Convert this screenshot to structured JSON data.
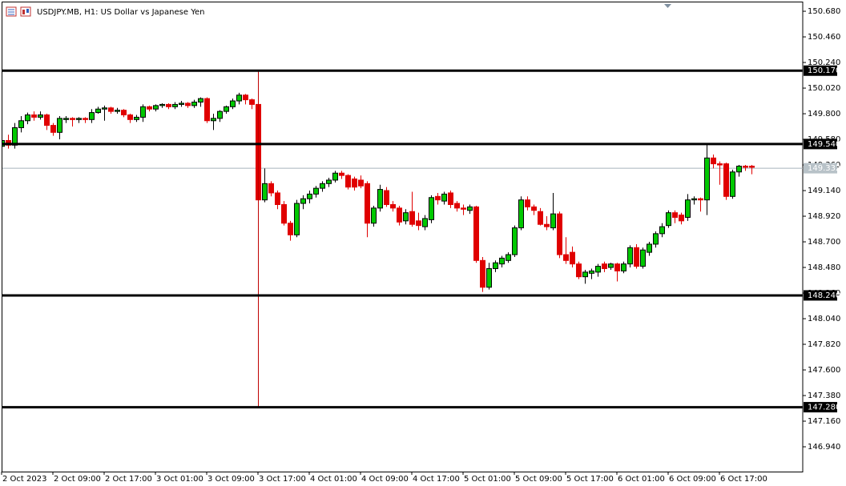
{
  "chart_data": {
    "type": "candlestick",
    "title": "USDJPY.MB, H1:  US Dollar vs Japanese Yen",
    "up_color": "#00c800",
    "down_color": "#e00000",
    "ohlc": [
      [
        149.52,
        149.6,
        149.5,
        149.57
      ],
      [
        149.57,
        149.62,
        149.5,
        149.53
      ],
      [
        149.53,
        149.72,
        149.5,
        149.68
      ],
      [
        149.68,
        149.78,
        149.64,
        149.74
      ],
      [
        149.74,
        149.81,
        149.71,
        149.79
      ],
      [
        149.79,
        149.82,
        149.74,
        149.77
      ],
      [
        149.77,
        149.82,
        149.75,
        149.79
      ],
      [
        149.79,
        149.8,
        149.66,
        149.7
      ],
      [
        149.7,
        149.72,
        149.61,
        149.64
      ],
      [
        149.64,
        149.78,
        149.58,
        149.76
      ],
      [
        149.75,
        149.78,
        149.72,
        149.76
      ],
      [
        149.76,
        149.77,
        149.69,
        149.75
      ],
      [
        149.75,
        149.77,
        149.72,
        149.76
      ],
      [
        149.76,
        149.77,
        149.72,
        149.75
      ],
      [
        149.75,
        149.84,
        149.72,
        149.81
      ],
      [
        149.81,
        149.86,
        149.8,
        149.84
      ],
      [
        149.84,
        149.87,
        149.74,
        149.85
      ],
      [
        149.85,
        149.86,
        149.8,
        149.82
      ],
      [
        149.82,
        149.85,
        149.8,
        149.83
      ],
      [
        149.83,
        149.84,
        149.77,
        149.79
      ],
      [
        149.79,
        149.8,
        149.72,
        149.75
      ],
      [
        149.75,
        149.79,
        149.73,
        149.77
      ],
      [
        149.77,
        149.88,
        149.73,
        149.86
      ],
      [
        149.86,
        149.87,
        149.82,
        149.84
      ],
      [
        149.84,
        149.88,
        149.82,
        149.87
      ],
      [
        149.87,
        149.89,
        149.85,
        149.88
      ],
      [
        149.88,
        149.89,
        149.84,
        149.86
      ],
      [
        149.86,
        149.9,
        149.84,
        149.88
      ],
      [
        149.88,
        149.91,
        149.86,
        149.89
      ],
      [
        149.89,
        149.9,
        149.85,
        149.87
      ],
      [
        149.87,
        149.92,
        149.85,
        149.9
      ],
      [
        149.9,
        149.94,
        149.86,
        149.93
      ],
      [
        149.93,
        149.94,
        149.72,
        149.74
      ],
      [
        149.74,
        149.8,
        149.66,
        149.76
      ],
      [
        149.76,
        149.83,
        149.73,
        149.82
      ],
      [
        149.82,
        149.87,
        149.8,
        149.86
      ],
      [
        149.86,
        149.93,
        149.84,
        149.91
      ],
      [
        149.91,
        149.98,
        149.88,
        149.96
      ],
      [
        149.96,
        149.97,
        149.88,
        149.92
      ],
      [
        149.92,
        149.93,
        149.84,
        149.88
      ],
      [
        149.88,
        149.9,
        149.04,
        149.06
      ],
      [
        149.06,
        149.33,
        149.04,
        149.2
      ],
      [
        149.2,
        149.22,
        149.09,
        149.12
      ],
      [
        149.12,
        149.14,
        148.98,
        149.02
      ],
      [
        149.02,
        149.05,
        148.84,
        148.86
      ],
      [
        148.86,
        148.88,
        148.71,
        148.76
      ],
      [
        148.76,
        149.06,
        148.74,
        149.03
      ],
      [
        149.03,
        149.1,
        148.98,
        149.07
      ],
      [
        149.07,
        149.14,
        149.03,
        149.11
      ],
      [
        149.11,
        149.18,
        149.08,
        149.16
      ],
      [
        149.16,
        149.22,
        149.13,
        149.2
      ],
      [
        149.2,
        149.25,
        149.17,
        149.23
      ],
      [
        149.23,
        149.31,
        149.21,
        149.29
      ],
      [
        149.29,
        149.31,
        149.24,
        149.27
      ],
      [
        149.27,
        149.28,
        149.15,
        149.17
      ],
      [
        149.24,
        149.26,
        149.14,
        149.17
      ],
      [
        149.23,
        149.27,
        149.16,
        149.18
      ],
      [
        149.2,
        149.22,
        148.74,
        148.86
      ],
      [
        148.86,
        149.01,
        148.83,
        148.99
      ],
      [
        148.99,
        149.19,
        148.96,
        149.15
      ],
      [
        149.14,
        149.17,
        149.0,
        149.02
      ],
      [
        149.02,
        149.05,
        148.96,
        148.99
      ],
      [
        148.99,
        149.01,
        148.84,
        148.87
      ],
      [
        148.88,
        148.98,
        148.85,
        148.95
      ],
      [
        148.96,
        149.13,
        148.83,
        148.85
      ],
      [
        148.88,
        148.95,
        148.8,
        148.84
      ],
      [
        148.83,
        148.93,
        148.8,
        148.9
      ],
      [
        148.89,
        149.1,
        148.86,
        149.08
      ],
      [
        149.09,
        149.12,
        149.02,
        149.06
      ],
      [
        149.05,
        149.13,
        149.02,
        149.11
      ],
      [
        149.12,
        149.14,
        148.99,
        149.02
      ],
      [
        149.03,
        149.05,
        148.96,
        148.99
      ],
      [
        148.99,
        149.02,
        148.93,
        148.98
      ],
      [
        148.97,
        149.02,
        148.94,
        149.0
      ],
      [
        149.0,
        149.01,
        148.52,
        148.54
      ],
      [
        148.54,
        148.57,
        148.27,
        148.31
      ],
      [
        148.31,
        148.52,
        148.29,
        148.47
      ],
      [
        148.47,
        148.54,
        148.44,
        148.52
      ],
      [
        148.51,
        148.58,
        148.48,
        148.56
      ],
      [
        148.54,
        148.61,
        148.52,
        148.59
      ],
      [
        148.59,
        148.84,
        148.57,
        148.82
      ],
      [
        148.82,
        149.09,
        148.8,
        149.06
      ],
      [
        149.06,
        149.09,
        148.97,
        149.0
      ],
      [
        149.0,
        149.02,
        148.93,
        148.97
      ],
      [
        148.96,
        148.99,
        148.84,
        148.85
      ],
      [
        148.85,
        148.92,
        148.8,
        148.83
      ],
      [
        148.82,
        149.12,
        148.8,
        148.94
      ],
      [
        148.94,
        148.96,
        148.56,
        148.59
      ],
      [
        148.59,
        148.74,
        148.51,
        148.54
      ],
      [
        148.61,
        148.66,
        148.48,
        148.51
      ],
      [
        148.51,
        148.53,
        148.38,
        148.4
      ],
      [
        148.4,
        148.46,
        148.34,
        148.44
      ],
      [
        148.43,
        148.47,
        148.38,
        148.45
      ],
      [
        148.44,
        148.51,
        148.4,
        148.49
      ],
      [
        148.51,
        148.53,
        148.44,
        148.47
      ],
      [
        148.48,
        148.52,
        148.46,
        148.51
      ],
      [
        148.51,
        148.52,
        148.36,
        148.45
      ],
      [
        148.45,
        148.53,
        148.43,
        148.51
      ],
      [
        148.51,
        148.67,
        148.48,
        148.65
      ],
      [
        148.65,
        148.68,
        148.47,
        148.49
      ],
      [
        148.49,
        148.65,
        148.47,
        148.63
      ],
      [
        148.61,
        148.7,
        148.58,
        148.68
      ],
      [
        148.68,
        148.79,
        148.65,
        148.77
      ],
      [
        148.77,
        148.86,
        148.74,
        148.83
      ],
      [
        148.84,
        148.97,
        148.82,
        148.95
      ],
      [
        148.95,
        148.97,
        148.86,
        148.91
      ],
      [
        148.93,
        148.95,
        148.85,
        148.88
      ],
      [
        148.91,
        149.11,
        148.88,
        149.06
      ],
      [
        149.06,
        149.09,
        149.02,
        149.07
      ],
      [
        149.07,
        149.08,
        148.96,
        149.06
      ],
      [
        149.06,
        149.54,
        148.93,
        149.42
      ],
      [
        149.42,
        149.45,
        149.33,
        149.37
      ],
      [
        149.37,
        149.39,
        149.19,
        149.36
      ],
      [
        149.37,
        149.38,
        149.06,
        149.09
      ],
      [
        149.09,
        149.32,
        149.07,
        149.3
      ],
      [
        149.3,
        149.36,
        149.26,
        149.35
      ],
      [
        149.35,
        149.36,
        149.31,
        149.34
      ],
      [
        149.35,
        149.36,
        149.28,
        149.34
      ]
    ],
    "xlim": [
      0.125,
      125
    ],
    "xticks": [
      {
        "value": 0,
        "label": "2 Oct 2023"
      },
      {
        "value": 8,
        "label": "2 Oct 09:00"
      },
      {
        "value": 16,
        "label": "2 Oct 17:00"
      },
      {
        "value": 24,
        "label": "3 Oct 01:00"
      },
      {
        "value": 32,
        "label": "3 Oct 09:00"
      },
      {
        "value": 40,
        "label": "3 Oct 17:00"
      },
      {
        "value": 48,
        "label": "4 Oct 01:00"
      },
      {
        "value": 56,
        "label": "4 Oct 09:00"
      },
      {
        "value": 64,
        "label": "4 Oct 17:00"
      },
      {
        "value": 72,
        "label": "5 Oct 01:00"
      },
      {
        "value": 80,
        "label": "5 Oct 09:00"
      },
      {
        "value": 88,
        "label": "5 Oct 17:00"
      },
      {
        "value": 96,
        "label": "6 Oct 01:00"
      },
      {
        "value": 104,
        "label": "6 Oct 09:00"
      },
      {
        "value": 112,
        "label": "6 Oct 17:00"
      }
    ],
    "ylim": [
      146.727,
      150.756
    ],
    "yticks": [
      {
        "value": 150.68,
        "label": "150.680"
      },
      {
        "value": 150.46,
        "label": "150.460"
      },
      {
        "value": 150.24,
        "label": "150.240"
      },
      {
        "value": 150.02,
        "label": "150.020"
      },
      {
        "value": 149.8,
        "label": "149.800"
      },
      {
        "value": 149.58,
        "label": "149.580"
      },
      {
        "value": 149.36,
        "label": "149.360"
      },
      {
        "value": 149.14,
        "label": "149.140"
      },
      {
        "value": 148.92,
        "label": "148.920"
      },
      {
        "value": 148.7,
        "label": "148.700"
      },
      {
        "value": 148.48,
        "label": "148.480"
      },
      {
        "value": 148.26,
        "label": "148.260"
      },
      {
        "value": 148.04,
        "label": "148.040"
      },
      {
        "value": 147.82,
        "label": "147.820"
      },
      {
        "value": 147.6,
        "label": "147.600"
      },
      {
        "value": 147.38,
        "label": "147.380"
      },
      {
        "value": 147.16,
        "label": "147.160"
      },
      {
        "value": 146.94,
        "label": "146.940"
      }
    ],
    "levels": [
      {
        "value": 150.17,
        "label": "150.170"
      },
      {
        "value": 149.54,
        "label": "149.540"
      },
      {
        "value": 148.24,
        "label": "148.240"
      },
      {
        "value": 147.28,
        "label": "147.280"
      }
    ],
    "current_price": {
      "value": 149.332,
      "label": "149.332"
    },
    "vertical_line": {
      "x": 40,
      "y1": 150.17,
      "y2": 147.28,
      "color": "#c00000"
    }
  }
}
